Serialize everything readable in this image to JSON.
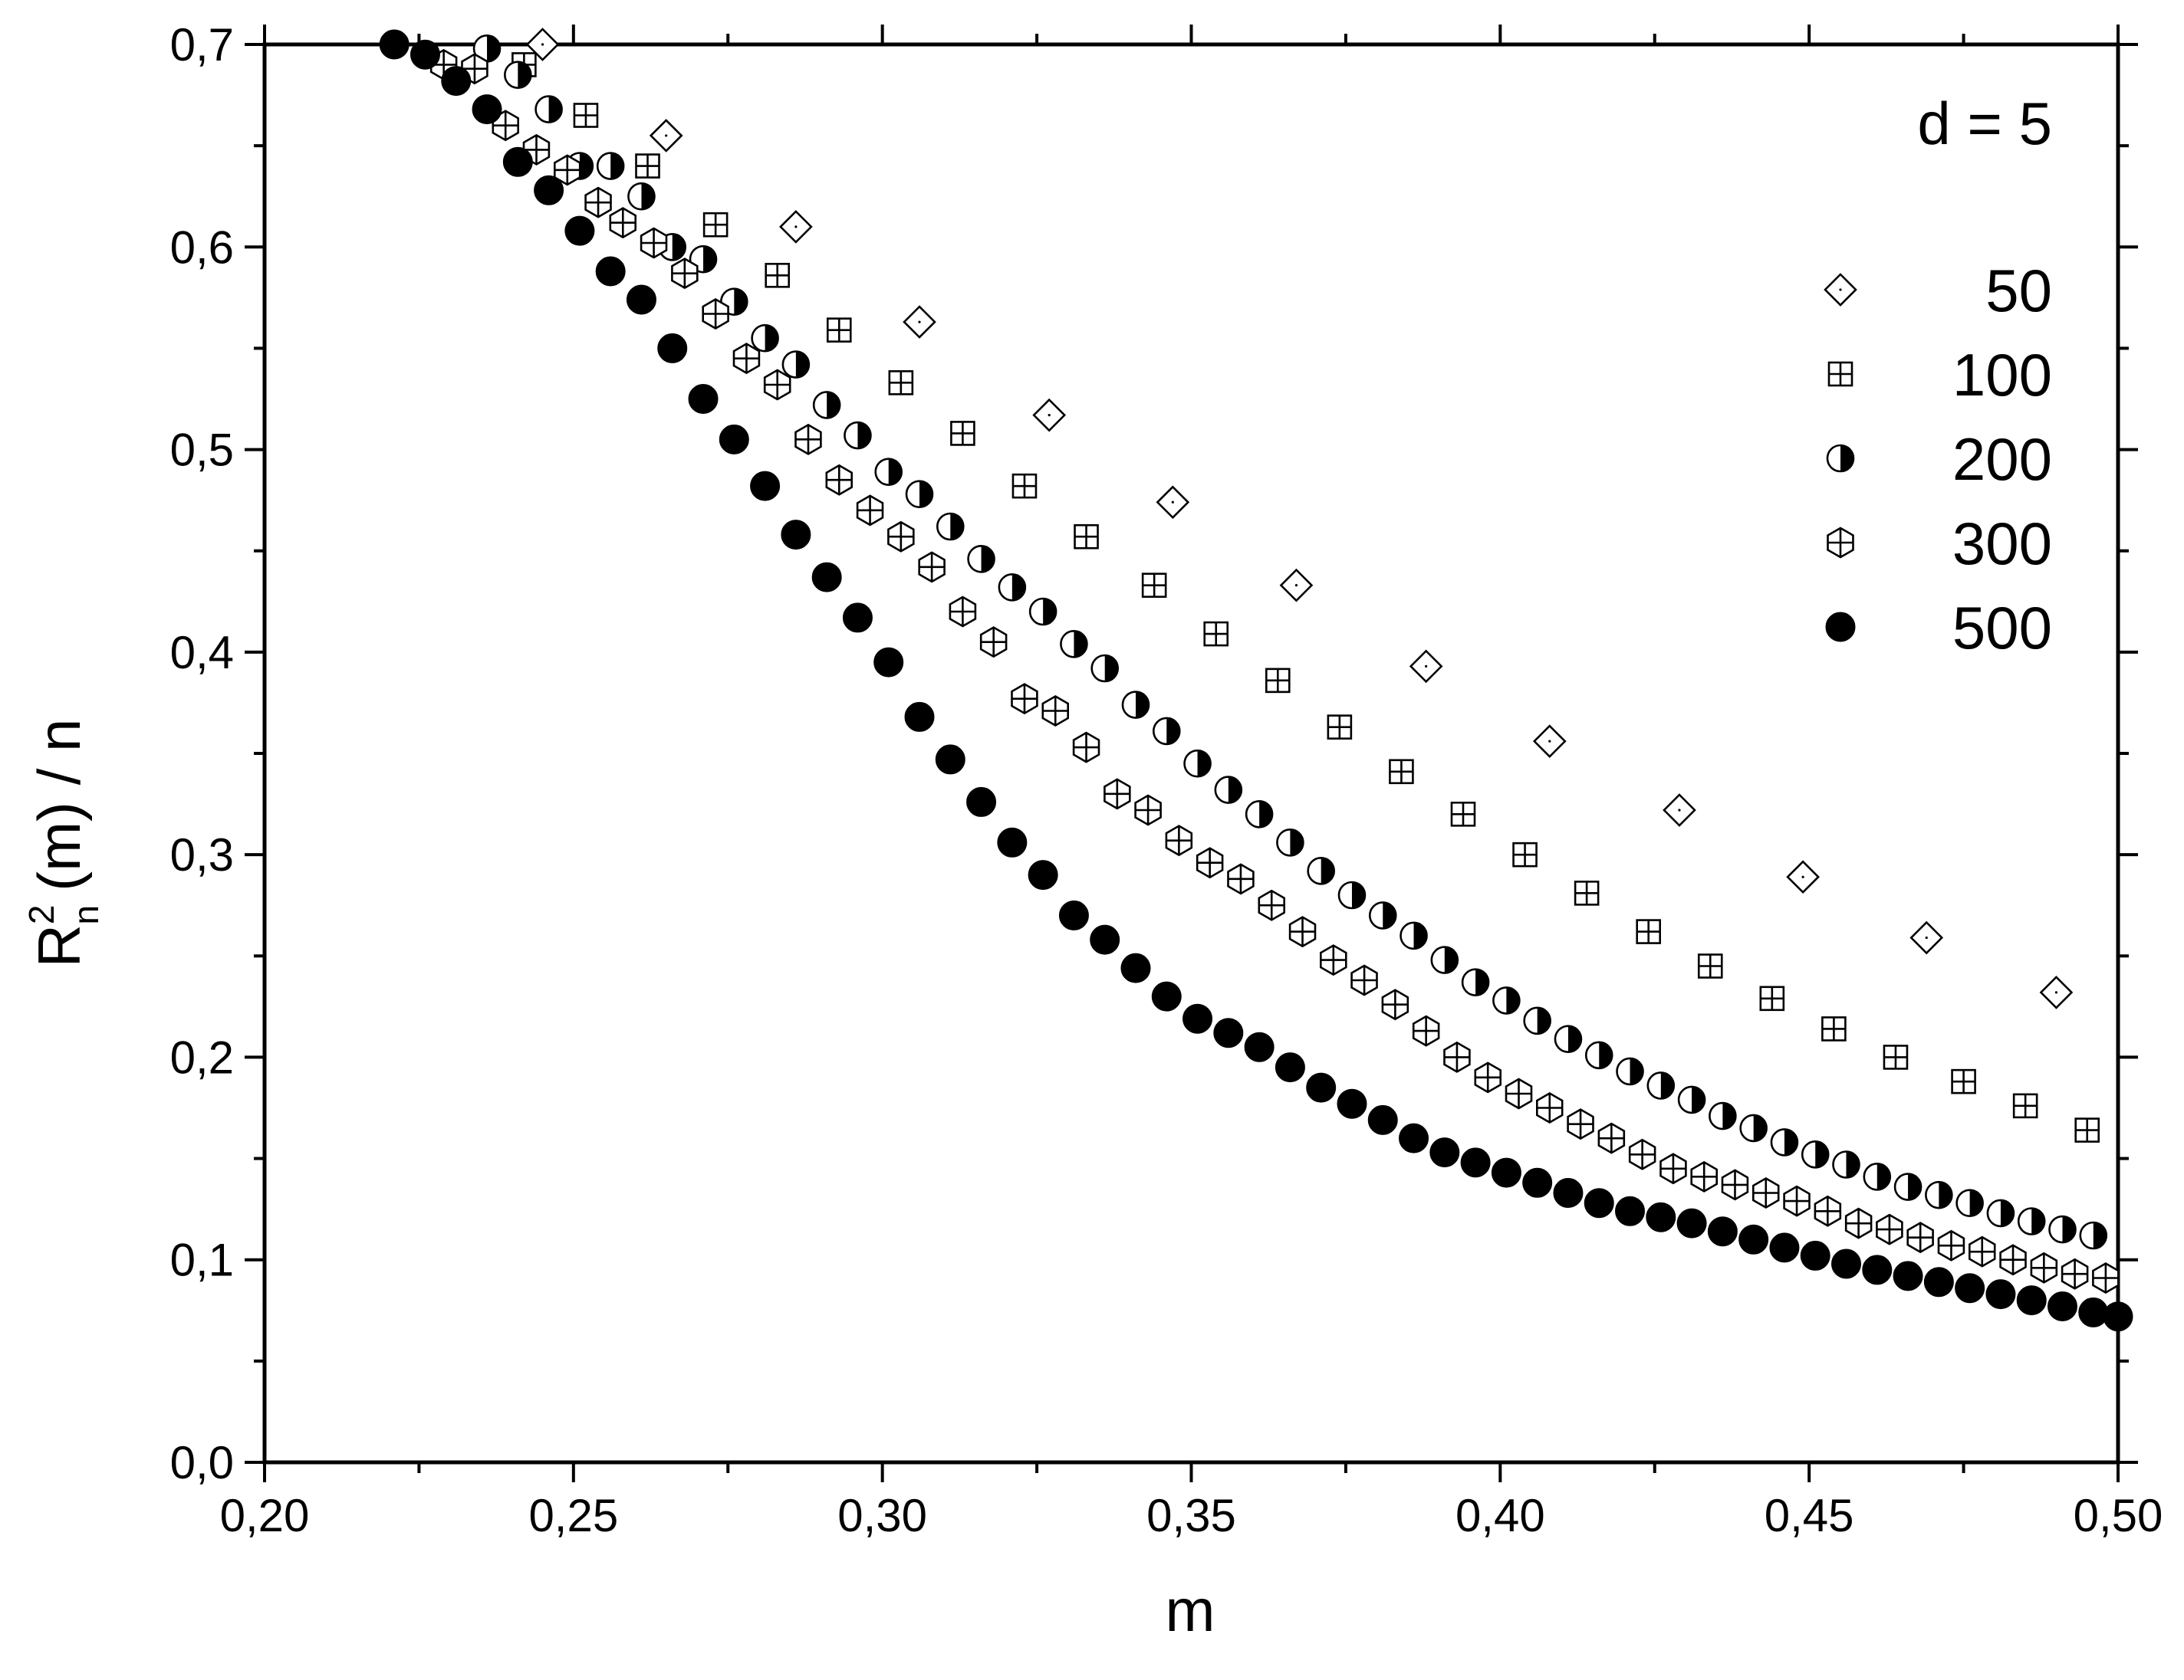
{
  "chart_data": {
    "type": "scatter",
    "title": "",
    "xlabel": "m",
    "ylabel": {
      "base": "R",
      "superscript": "2",
      "subscript": "n",
      "rest": "(m) / n"
    },
    "annotation": "d = 5",
    "xlim": [
      0.2,
      0.5
    ],
    "ylim": [
      0.0,
      0.7
    ],
    "x_ticks": [
      "0,20",
      "0,25",
      "0,30",
      "0,35",
      "0,40",
      "0,45",
      "0,50"
    ],
    "x_tick_values": [
      0.2,
      0.25,
      0.3,
      0.35,
      0.4,
      0.45,
      0.5
    ],
    "y_ticks": [
      "0,0",
      "0,1",
      "0,2",
      "0,3",
      "0,4",
      "0,5",
      "0,6",
      "0,7"
    ],
    "y_tick_values": [
      0.0,
      0.1,
      0.2,
      0.3,
      0.4,
      0.5,
      0.6,
      0.7
    ],
    "grid": false,
    "legend_position": "top-right",
    "series": [
      {
        "name": "50",
        "marker": "open-diamond",
        "x": [
          0.245,
          0.265,
          0.286,
          0.306,
          0.327,
          0.347,
          0.367,
          0.388,
          0.408,
          0.429,
          0.449,
          0.469,
          0.49
        ],
        "y": [
          0.7,
          0.655,
          0.61,
          0.563,
          0.517,
          0.474,
          0.433,
          0.393,
          0.356,
          0.322,
          0.289,
          0.259,
          0.232
        ]
      },
      {
        "name": "100",
        "marker": "squared-plus",
        "x": [
          0.242,
          0.252,
          0.262,
          0.273,
          0.283,
          0.293,
          0.303,
          0.313,
          0.323,
          0.333,
          0.344,
          0.354,
          0.364,
          0.374,
          0.384,
          0.394,
          0.404,
          0.414,
          0.424,
          0.434,
          0.444,
          0.454,
          0.464,
          0.475,
          0.485,
          0.495
        ],
        "y": [
          0.69,
          0.665,
          0.64,
          0.611,
          0.586,
          0.559,
          0.533,
          0.508,
          0.482,
          0.457,
          0.433,
          0.409,
          0.386,
          0.363,
          0.341,
          0.32,
          0.3,
          0.281,
          0.262,
          0.245,
          0.229,
          0.214,
          0.2,
          0.188,
          0.176,
          0.164
        ]
      },
      {
        "name": "200",
        "marker": "half-filled-circle",
        "x": [
          0.236,
          0.241,
          0.246,
          0.251,
          0.256,
          0.261,
          0.266,
          0.271,
          0.276,
          0.281,
          0.286,
          0.291,
          0.296,
          0.301,
          0.306,
          0.311,
          0.316,
          0.321,
          0.326,
          0.331,
          0.336,
          0.341,
          0.346,
          0.351,
          0.356,
          0.361,
          0.366,
          0.371,
          0.376,
          0.381,
          0.386,
          0.391,
          0.396,
          0.401,
          0.406,
          0.411,
          0.416,
          0.421,
          0.426,
          0.431,
          0.436,
          0.441,
          0.446,
          0.451,
          0.456,
          0.461,
          0.466,
          0.471,
          0.476,
          0.481,
          0.486,
          0.491,
          0.496
        ],
        "y": [
          0.698,
          0.685,
          0.668,
          0.64,
          0.64,
          0.625,
          0.6,
          0.594,
          0.573,
          0.555,
          0.542,
          0.522,
          0.507,
          0.489,
          0.478,
          0.462,
          0.446,
          0.432,
          0.42,
          0.404,
          0.392,
          0.374,
          0.361,
          0.345,
          0.332,
          0.32,
          0.306,
          0.292,
          0.28,
          0.27,
          0.26,
          0.248,
          0.237,
          0.228,
          0.218,
          0.209,
          0.201,
          0.193,
          0.186,
          0.179,
          0.171,
          0.165,
          0.158,
          0.152,
          0.147,
          0.141,
          0.136,
          0.132,
          0.128,
          0.123,
          0.119,
          0.115,
          0.112
        ]
      },
      {
        "name": "300",
        "marker": "hexagon-cross",
        "x": [
          0.229,
          0.234,
          0.239,
          0.244,
          0.249,
          0.254,
          0.258,
          0.263,
          0.268,
          0.273,
          0.278,
          0.283,
          0.288,
          0.293,
          0.298,
          0.303,
          0.308,
          0.313,
          0.318,
          0.323,
          0.328,
          0.333,
          0.338,
          0.343,
          0.348,
          0.353,
          0.358,
          0.363,
          0.368,
          0.373,
          0.378,
          0.383,
          0.388,
          0.393,
          0.398,
          0.403,
          0.408,
          0.413,
          0.418,
          0.423,
          0.428,
          0.433,
          0.438,
          0.443,
          0.448,
          0.453,
          0.458,
          0.463,
          0.468,
          0.473,
          0.478,
          0.483,
          0.488,
          0.493,
          0.498
        ],
        "y": [
          0.69,
          0.688,
          0.66,
          0.648,
          0.638,
          0.622,
          0.612,
          0.602,
          0.587,
          0.567,
          0.545,
          0.532,
          0.505,
          0.485,
          0.47,
          0.457,
          0.442,
          0.42,
          0.405,
          0.377,
          0.371,
          0.353,
          0.33,
          0.322,
          0.307,
          0.296,
          0.288,
          0.275,
          0.262,
          0.248,
          0.238,
          0.226,
          0.213,
          0.2,
          0.19,
          0.182,
          0.175,
          0.167,
          0.16,
          0.152,
          0.145,
          0.141,
          0.137,
          0.133,
          0.129,
          0.124,
          0.118,
          0.115,
          0.111,
          0.107,
          0.104,
          0.1,
          0.096,
          0.093,
          0.091
        ]
      },
      {
        "name": "500",
        "marker": "filled-circle",
        "x": [
          0.221,
          0.226,
          0.231,
          0.236,
          0.241,
          0.246,
          0.251,
          0.256,
          0.261,
          0.266,
          0.271,
          0.276,
          0.281,
          0.286,
          0.291,
          0.296,
          0.301,
          0.306,
          0.311,
          0.316,
          0.321,
          0.326,
          0.331,
          0.336,
          0.341,
          0.346,
          0.351,
          0.356,
          0.361,
          0.366,
          0.371,
          0.376,
          0.381,
          0.386,
          0.391,
          0.396,
          0.401,
          0.406,
          0.411,
          0.416,
          0.421,
          0.426,
          0.431,
          0.436,
          0.441,
          0.446,
          0.451,
          0.456,
          0.461,
          0.466,
          0.471,
          0.476,
          0.481,
          0.486,
          0.491,
          0.496,
          0.5
        ],
        "y": [
          0.7,
          0.695,
          0.682,
          0.668,
          0.642,
          0.628,
          0.608,
          0.588,
          0.574,
          0.55,
          0.525,
          0.505,
          0.482,
          0.458,
          0.437,
          0.417,
          0.395,
          0.368,
          0.347,
          0.326,
          0.306,
          0.29,
          0.27,
          0.258,
          0.244,
          0.23,
          0.219,
          0.212,
          0.205,
          0.195,
          0.185,
          0.177,
          0.169,
          0.16,
          0.153,
          0.148,
          0.143,
          0.138,
          0.133,
          0.128,
          0.124,
          0.121,
          0.118,
          0.114,
          0.11,
          0.106,
          0.102,
          0.098,
          0.095,
          0.092,
          0.089,
          0.086,
          0.083,
          0.08,
          0.077,
          0.074,
          0.072
        ]
      }
    ]
  }
}
